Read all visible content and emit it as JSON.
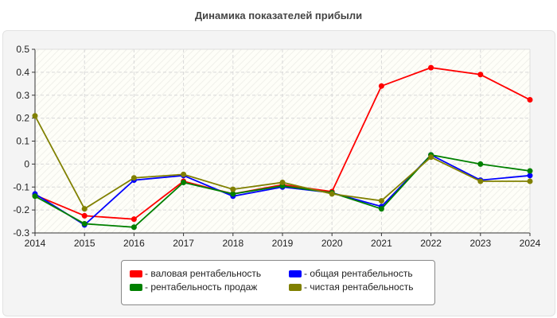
{
  "chart_data": {
    "type": "line",
    "title": "Динамика показателей прибыли",
    "xlabel": "",
    "ylabel": "",
    "x": [
      2014,
      2015,
      2016,
      2017,
      2018,
      2019,
      2020,
      2021,
      2022,
      2023,
      2024
    ],
    "x_tick_labels": [
      "2014",
      "2015",
      "2016",
      "2017",
      "2018",
      "2019",
      "2020",
      "2021",
      "2022",
      "2023",
      "2024"
    ],
    "ylim": [
      -0.3,
      0.5
    ],
    "y_ticks": [
      0.5,
      0.4,
      0.3,
      0.2,
      0.1,
      0,
      -0.1,
      -0.2,
      -0.3
    ],
    "y_tick_labels": [
      "0.5",
      "0.4",
      "0.3",
      "0.2",
      "0.1",
      "0",
      "-0.1",
      "-0.2",
      "-0.3"
    ],
    "grid": true,
    "legend_position": "bottom",
    "series": [
      {
        "name": "- валовая рентабельность",
        "color": "#ff0000",
        "values": [
          -0.135,
          -0.225,
          -0.24,
          -0.075,
          -0.13,
          -0.09,
          -0.12,
          0.34,
          0.42,
          0.39,
          0.28
        ]
      },
      {
        "name": "- общая рентабельность",
        "color": "#0000ff",
        "values": [
          -0.13,
          -0.265,
          -0.07,
          -0.05,
          -0.14,
          -0.1,
          -0.125,
          -0.185,
          0.04,
          -0.07,
          -0.05
        ]
      },
      {
        "name": "- рентабельность продаж",
        "color": "#008000",
        "values": [
          -0.14,
          -0.26,
          -0.275,
          -0.08,
          -0.13,
          -0.095,
          -0.125,
          -0.195,
          0.04,
          0.0,
          -0.03
        ]
      },
      {
        "name": "- чистая рентабельность",
        "color": "#808000",
        "values": [
          0.21,
          -0.195,
          -0.06,
          -0.045,
          -0.11,
          -0.08,
          -0.13,
          -0.16,
          0.03,
          -0.075,
          -0.075
        ]
      }
    ]
  }
}
